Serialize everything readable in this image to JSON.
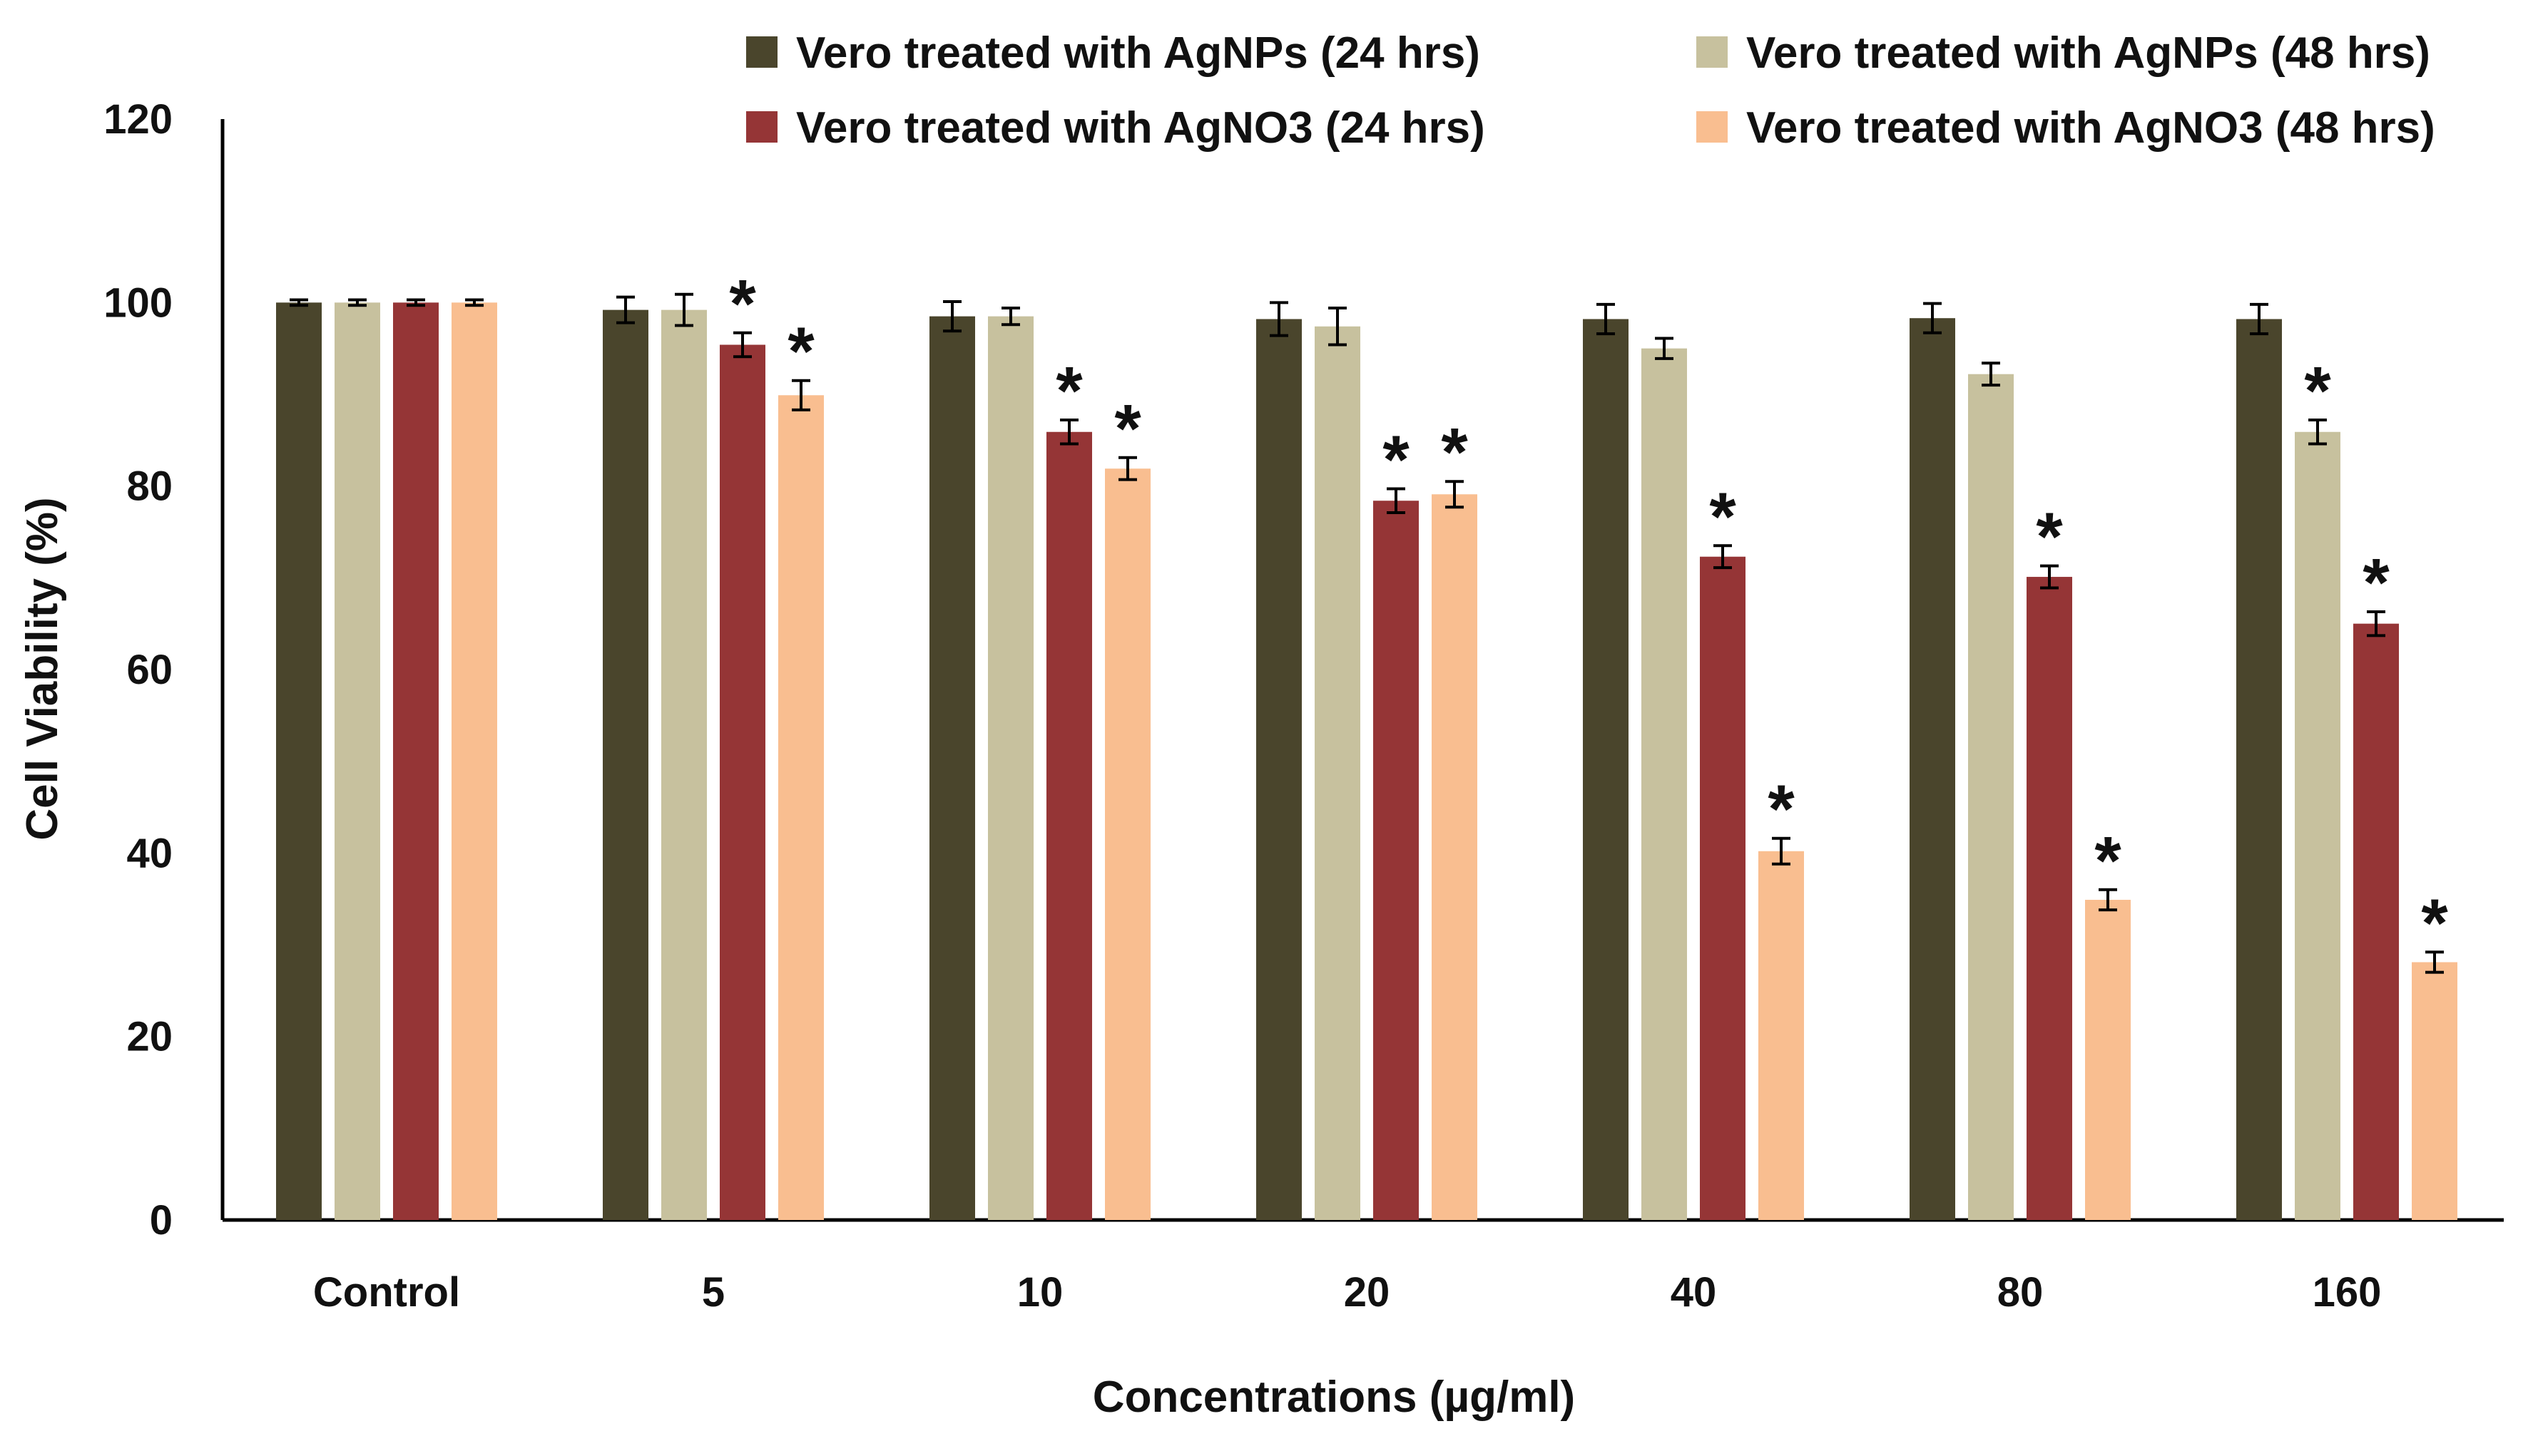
{
  "chart_data": {
    "type": "bar",
    "title": "",
    "xlabel": "Concentrations (µg/ml)",
    "ylabel": "Cell Viability (%)",
    "ylim": [
      0,
      120
    ],
    "yticks": [
      0,
      20,
      40,
      60,
      80,
      100,
      120
    ],
    "grid": false,
    "legend_position": "top-right",
    "categories": [
      "Control",
      "5",
      "10",
      "20",
      "40",
      "80",
      "160"
    ],
    "significance_symbol": "*",
    "series": [
      {
        "name": "Vero treated with AgNPs (24 hrs)",
        "color": "#4a452c",
        "values": [
          100,
          99.2,
          98.5,
          98.2,
          98.2,
          98.3,
          98.2
        ],
        "errors": [
          0.3,
          1.4,
          1.6,
          1.8,
          1.6,
          1.6,
          1.6
        ],
        "significant": [
          false,
          false,
          false,
          false,
          false,
          false,
          false
        ]
      },
      {
        "name": "Vero treated with AgNPs (48 hrs)",
        "color": "#c7c19e",
        "values": [
          100,
          99.2,
          98.5,
          97.4,
          95.0,
          92.2,
          85.9
        ],
        "errors": [
          0.3,
          1.7,
          0.9,
          2.0,
          1.1,
          1.2,
          1.3
        ],
        "significant": [
          false,
          false,
          false,
          false,
          false,
          false,
          true
        ]
      },
      {
        "name": "Vero treated with AgNO3 (24 hrs)",
        "color": "#953536",
        "values": [
          100,
          95.4,
          85.9,
          78.4,
          72.3,
          70.1,
          65.0
        ],
        "errors": [
          0.3,
          1.3,
          1.3,
          1.3,
          1.2,
          1.2,
          1.3
        ],
        "significant": [
          false,
          true,
          true,
          true,
          true,
          true,
          true
        ]
      },
      {
        "name": "Vero treated with AgNO3 (48 hrs)",
        "color": "#f9be90",
        "values": [
          100,
          89.9,
          81.9,
          79.1,
          40.2,
          34.9,
          28.1
        ],
        "errors": [
          0.3,
          1.6,
          1.2,
          1.4,
          1.4,
          1.1,
          1.1
        ],
        "significant": [
          false,
          true,
          true,
          true,
          true,
          true,
          true
        ]
      }
    ]
  }
}
